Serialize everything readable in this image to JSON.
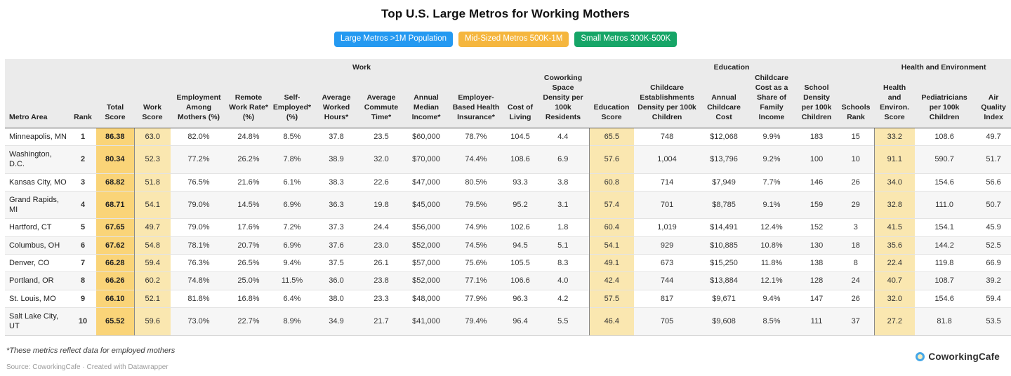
{
  "title": "Top U.S. Large Metros for Working Mothers",
  "filters": [
    {
      "label": "Large Metros >1M Population",
      "color": "#2499f1",
      "active": true
    },
    {
      "label": "Mid-Sized Metros 500K-1M",
      "color": "#f5b63e",
      "active": false
    },
    {
      "label": "Small Metros 300K-500K",
      "color": "#16a567",
      "active": false
    }
  ],
  "chart_data": {
    "type": "table",
    "title": "Top U.S. Large Metros for Working Mothers",
    "column_groups": [
      {
        "label": "",
        "span": 3
      },
      {
        "label": "Work",
        "span": 10
      },
      {
        "label": "Education",
        "span": 6
      },
      {
        "label": "Health and Environment",
        "span": 3
      }
    ],
    "columns": [
      "Metro Area",
      "Rank",
      "Total Score",
      "Work Score",
      "Employment Among Mothers (%)",
      "Remote Work Rate* (%)",
      "Self-Employed* (%)",
      "Average Worked Hours*",
      "Average Commute Time*",
      "Annual Median Income*",
      "Employer-Based Health Insurance*",
      "Cost of Living",
      "Coworking Space Density per 100k Residents",
      "Education Score",
      "Childcare Establishments Density per 100k Children",
      "Annual Childcare Cost",
      "Childcare Cost as a Share of Family Income",
      "School Density per 100k Children",
      "Schools Rank",
      "Health and Environ. Score",
      "Pediatricians per 100k Children",
      "Air Quality Index"
    ],
    "rows": [
      [
        "Minneapolis, MN",
        "1",
        "86.38",
        "63.0",
        "82.0%",
        "24.8%",
        "8.5%",
        "37.8",
        "23.5",
        "$60,000",
        "78.7%",
        "104.5",
        "4.4",
        "65.5",
        "748",
        "$12,068",
        "9.9%",
        "183",
        "15",
        "33.2",
        "108.6",
        "49.7"
      ],
      [
        "Washington, D.C.",
        "2",
        "80.34",
        "52.3",
        "77.2%",
        "26.2%",
        "7.8%",
        "38.9",
        "32.0",
        "$70,000",
        "74.4%",
        "108.6",
        "6.9",
        "57.6",
        "1,004",
        "$13,796",
        "9.2%",
        "100",
        "10",
        "91.1",
        "590.7",
        "51.7"
      ],
      [
        "Kansas City, MO",
        "3",
        "68.82",
        "51.8",
        "76.5%",
        "21.6%",
        "6.1%",
        "38.3",
        "22.6",
        "$47,000",
        "80.5%",
        "93.3",
        "3.8",
        "60.8",
        "714",
        "$7,949",
        "7.7%",
        "146",
        "26",
        "34.0",
        "154.6",
        "56.6"
      ],
      [
        "Grand Rapids, MI",
        "4",
        "68.71",
        "54.1",
        "79.0%",
        "14.5%",
        "6.9%",
        "36.3",
        "19.8",
        "$45,000",
        "79.5%",
        "95.2",
        "3.1",
        "57.4",
        "701",
        "$8,785",
        "9.1%",
        "159",
        "29",
        "32.8",
        "111.0",
        "50.7"
      ],
      [
        "Hartford, CT",
        "5",
        "67.65",
        "49.7",
        "79.0%",
        "17.6%",
        "7.2%",
        "37.3",
        "24.4",
        "$56,000",
        "74.9%",
        "102.6",
        "1.8",
        "60.4",
        "1,019",
        "$14,491",
        "12.4%",
        "152",
        "3",
        "41.5",
        "154.1",
        "45.9"
      ],
      [
        "Columbus, OH",
        "6",
        "67.62",
        "54.8",
        "78.1%",
        "20.7%",
        "6.9%",
        "37.6",
        "23.0",
        "$52,000",
        "74.5%",
        "94.5",
        "5.1",
        "54.1",
        "929",
        "$10,885",
        "10.8%",
        "130",
        "18",
        "35.6",
        "144.2",
        "52.5"
      ],
      [
        "Denver, CO",
        "7",
        "66.28",
        "59.4",
        "76.3%",
        "26.5%",
        "9.4%",
        "37.5",
        "26.1",
        "$57,000",
        "75.6%",
        "105.5",
        "8.3",
        "49.1",
        "673",
        "$15,250",
        "11.8%",
        "138",
        "8",
        "22.4",
        "119.8",
        "66.9"
      ],
      [
        "Portland, OR",
        "8",
        "66.26",
        "60.2",
        "74.8%",
        "25.0%",
        "11.5%",
        "36.0",
        "23.8",
        "$52,000",
        "77.1%",
        "106.6",
        "4.0",
        "42.4",
        "744",
        "$13,884",
        "12.1%",
        "128",
        "24",
        "40.7",
        "108.7",
        "39.2"
      ],
      [
        "St. Louis, MO",
        "9",
        "66.10",
        "52.1",
        "81.8%",
        "16.8%",
        "6.4%",
        "38.0",
        "23.3",
        "$48,000",
        "77.9%",
        "96.3",
        "4.2",
        "57.5",
        "817",
        "$9,671",
        "9.4%",
        "147",
        "26",
        "32.0",
        "154.6",
        "59.4"
      ],
      [
        "Salt Lake City, UT",
        "10",
        "65.52",
        "59.6",
        "73.0%",
        "22.7%",
        "8.9%",
        "34.9",
        "21.7",
        "$41,000",
        "79.4%",
        "96.4",
        "5.5",
        "46.4",
        "705",
        "$9,608",
        "8.5%",
        "111",
        "37",
        "27.2",
        "81.8",
        "53.5"
      ]
    ]
  },
  "footnote": "*These metrics reflect data for employed mothers",
  "source": "Source: CoworkingCafe · Created with Datawrapper",
  "brand": {
    "name": "CoworkingCafe"
  },
  "colors": {
    "header_bg": "#ebebeb",
    "total_score_bg": "#fad478",
    "score_bg": "#fae7b0",
    "zebra_bg": "#f6f6f6"
  }
}
